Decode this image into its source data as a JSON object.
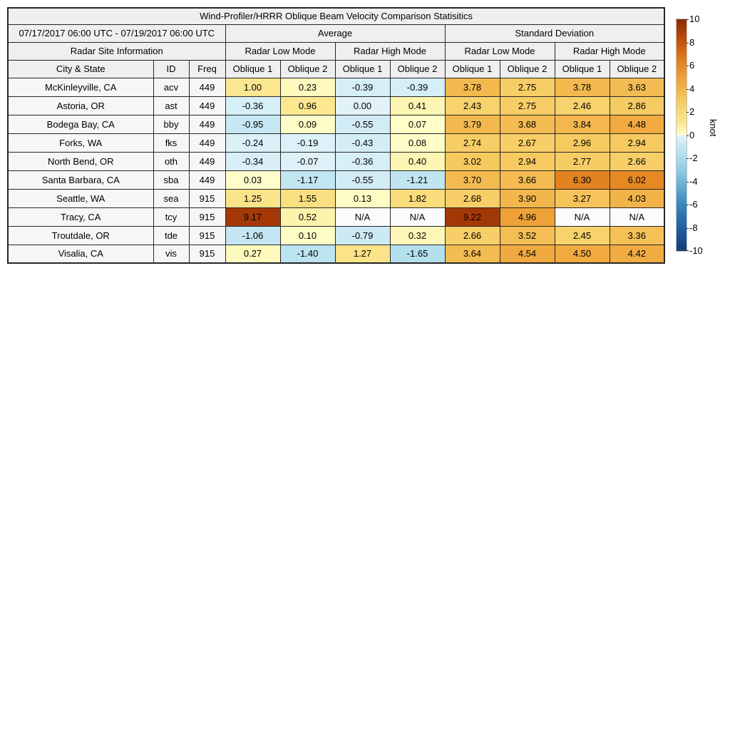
{
  "table": {
    "title": "Wind-Profiler/HRRR Oblique Beam Velocity Comparison Statisitics",
    "period": "07/17/2017 06:00 UTC - 07/19/2017 06:00 UTC",
    "sections": {
      "average": "Average",
      "standard_deviation": "Standard Deviation"
    },
    "site_info_header": "Radar Site Information",
    "mode_headers": [
      "Radar Low Mode",
      "Radar High Mode",
      "Radar Low Mode",
      "Radar High Mode"
    ],
    "columns": [
      "City & State",
      "ID",
      "Freq",
      "Oblique 1",
      "Oblique 2",
      "Oblique 1",
      "Oblique 2",
      "Oblique 1",
      "Oblique 2",
      "Oblique 1",
      "Oblique 2"
    ],
    "na_label": "N/A"
  },
  "chart_data": {
    "type": "heatmap",
    "title": "Wind-Profiler/HRRR Oblique Beam Velocity Comparison Statisitics",
    "period": "07/17/2017 06:00 UTC - 07/19/2017 06:00 UTC",
    "unit": "knot",
    "value_columns": [
      "average_low_mode_oblique1",
      "average_low_mode_oblique2",
      "average_high_mode_oblique1",
      "average_high_mode_oblique2",
      "std_low_mode_oblique1",
      "std_low_mode_oblique2",
      "std_high_mode_oblique1",
      "std_high_mode_oblique2"
    ],
    "rows": [
      {
        "city": "McKinleyville, CA",
        "id": "acv",
        "freq": "449",
        "values": [
          "1.00",
          "0.23",
          "-0.39",
          "-0.39",
          "3.78",
          "2.75",
          "3.78",
          "3.63"
        ]
      },
      {
        "city": "Astoria, OR",
        "id": "ast",
        "freq": "449",
        "values": [
          "-0.36",
          "0.96",
          "0.00",
          "0.41",
          "2.43",
          "2.75",
          "2.46",
          "2.86"
        ]
      },
      {
        "city": "Bodega Bay, CA",
        "id": "bby",
        "freq": "449",
        "values": [
          "-0.95",
          "0.09",
          "-0.55",
          "0.07",
          "3.79",
          "3.68",
          "3.84",
          "4.48"
        ]
      },
      {
        "city": "Forks, WA",
        "id": "fks",
        "freq": "449",
        "values": [
          "-0.24",
          "-0.19",
          "-0.43",
          "0.08",
          "2.74",
          "2.67",
          "2.96",
          "2.94"
        ]
      },
      {
        "city": "North Bend, OR",
        "id": "oth",
        "freq": "449",
        "values": [
          "-0.34",
          "-0.07",
          "-0.36",
          "0.40",
          "3.02",
          "2.94",
          "2.77",
          "2.66"
        ]
      },
      {
        "city": "Santa Barbara, CA",
        "id": "sba",
        "freq": "449",
        "values": [
          "0.03",
          "-1.17",
          "-0.55",
          "-1.21",
          "3.70",
          "3.66",
          "6.30",
          "6.02"
        ]
      },
      {
        "city": "Seattle, WA",
        "id": "sea",
        "freq": "915",
        "values": [
          "1.25",
          "1.55",
          "0.13",
          "1.82",
          "2.68",
          "3.90",
          "3.27",
          "4.03"
        ]
      },
      {
        "city": "Tracy, CA",
        "id": "tcy",
        "freq": "915",
        "values": [
          "9.17",
          "0.52",
          "N/A",
          "N/A",
          "9.22",
          "4.96",
          "N/A",
          "N/A"
        ]
      },
      {
        "city": "Troutdale, OR",
        "id": "tde",
        "freq": "915",
        "values": [
          "-1.06",
          "0.10",
          "-0.79",
          "0.32",
          "2.66",
          "3.52",
          "2.45",
          "3.36"
        ]
      },
      {
        "city": "Visalia, CA",
        "id": "vis",
        "freq": "915",
        "values": [
          "0.27",
          "-1.40",
          "1.27",
          "-1.65",
          "3.64",
          "4.54",
          "4.50",
          "4.42"
        ]
      }
    ],
    "colorbar": {
      "label": "knot",
      "min": -10,
      "max": 10,
      "ticks": [
        10,
        8,
        6,
        4,
        2,
        0,
        -2,
        -4,
        -6,
        -8,
        -10
      ],
      "na_color": "#fbfbfb",
      "stops": [
        [
          -10,
          "#163a70"
        ],
        [
          -9,
          "#1b4c8f"
        ],
        [
          -8,
          "#1f5fa6"
        ],
        [
          -7,
          "#2a71b0"
        ],
        [
          -6,
          "#3b88bd"
        ],
        [
          -5,
          "#539fc9"
        ],
        [
          -4,
          "#72b8d8"
        ],
        [
          -3,
          "#8fcce2"
        ],
        [
          -2,
          "#abdcec"
        ],
        [
          -1,
          "#c6e7f2"
        ],
        [
          0,
          "#e1f3f9"
        ],
        [
          0.001,
          "#ffffcc"
        ],
        [
          1,
          "#fbe78f"
        ],
        [
          2,
          "#f8d978"
        ],
        [
          3,
          "#f6c95f"
        ],
        [
          4,
          "#f2b44a"
        ],
        [
          5,
          "#eda036"
        ],
        [
          6,
          "#e68a25"
        ],
        [
          7,
          "#d96f15"
        ],
        [
          8,
          "#c4560b"
        ],
        [
          9,
          "#a93c07"
        ],
        [
          10,
          "#8c2a05"
        ]
      ]
    }
  }
}
